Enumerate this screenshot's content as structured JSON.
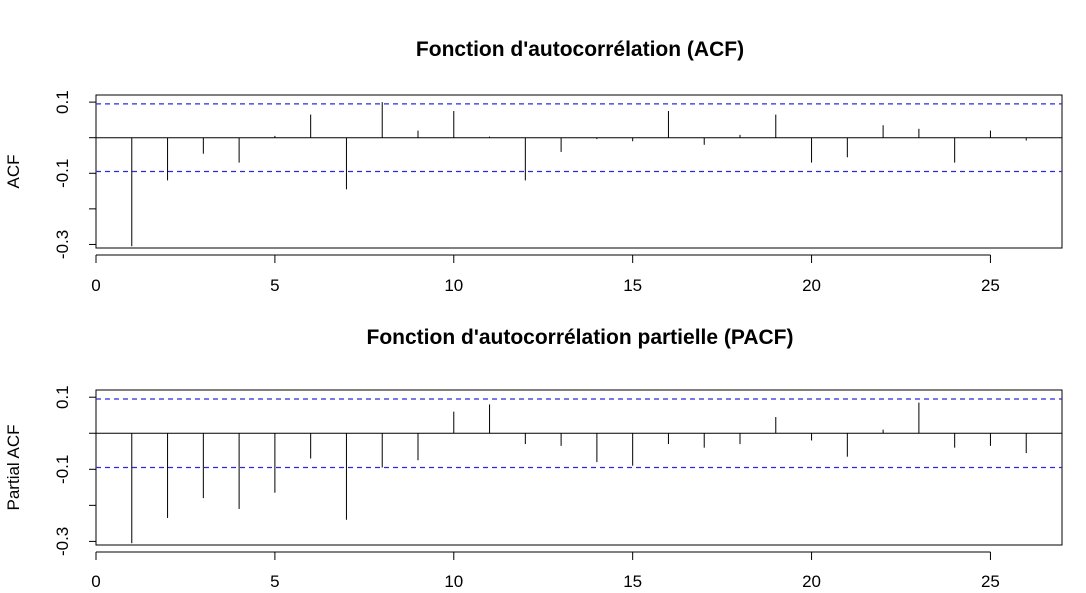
{
  "chart_data": [
    {
      "type": "bar",
      "title": "Fonction d'autocorrélation (ACF)",
      "ylabel": "ACF",
      "xlim": [
        0,
        27
      ],
      "ylim": [
        -0.31,
        0.12
      ],
      "xticks": [
        0,
        5,
        10,
        15,
        20,
        25
      ],
      "yticks": [
        0.1,
        -0.1,
        -0.3
      ],
      "ytick_labels": [
        "0.1",
        "-0.1",
        "-0.3"
      ],
      "confidence": 0.095,
      "confidence_color": "#2b2bd6",
      "lags": [
        1,
        2,
        3,
        4,
        5,
        6,
        7,
        8,
        9,
        10,
        11,
        12,
        13,
        14,
        15,
        16,
        17,
        18,
        19,
        20,
        21,
        22,
        23,
        24,
        25,
        26
      ],
      "values": [
        -0.305,
        -0.12,
        -0.045,
        -0.07,
        0.005,
        0.065,
        -0.145,
        0.1,
        0.02,
        0.075,
        0.003,
        -0.12,
        -0.04,
        -0.004,
        -0.01,
        0.075,
        -0.02,
        0.008,
        0.065,
        -0.07,
        -0.055,
        0.035,
        0.025,
        -0.07,
        0.02,
        -0.008
      ]
    },
    {
      "type": "bar",
      "title": "Fonction d'autocorrélation partielle (PACF)",
      "ylabel": "Partial ACF",
      "xlim": [
        0,
        27
      ],
      "ylim": [
        -0.31,
        0.12
      ],
      "xticks": [
        0,
        5,
        10,
        15,
        20,
        25
      ],
      "yticks": [
        0.1,
        -0.1,
        -0.3
      ],
      "ytick_labels": [
        "0.1",
        "-0.1",
        "-0.3"
      ],
      "confidence": 0.095,
      "confidence_color": "#2b2bd6",
      "lags": [
        1,
        2,
        3,
        4,
        5,
        6,
        7,
        8,
        9,
        10,
        11,
        12,
        13,
        14,
        15,
        16,
        17,
        18,
        19,
        20,
        21,
        22,
        23,
        24,
        25,
        26
      ],
      "values": [
        -0.305,
        -0.235,
        -0.18,
        -0.21,
        -0.165,
        -0.07,
        -0.24,
        -0.095,
        -0.075,
        0.06,
        0.08,
        -0.03,
        -0.035,
        -0.08,
        -0.09,
        -0.03,
        -0.04,
        -0.03,
        0.045,
        -0.02,
        -0.065,
        0.01,
        0.085,
        -0.04,
        -0.035,
        -0.055
      ]
    }
  ]
}
